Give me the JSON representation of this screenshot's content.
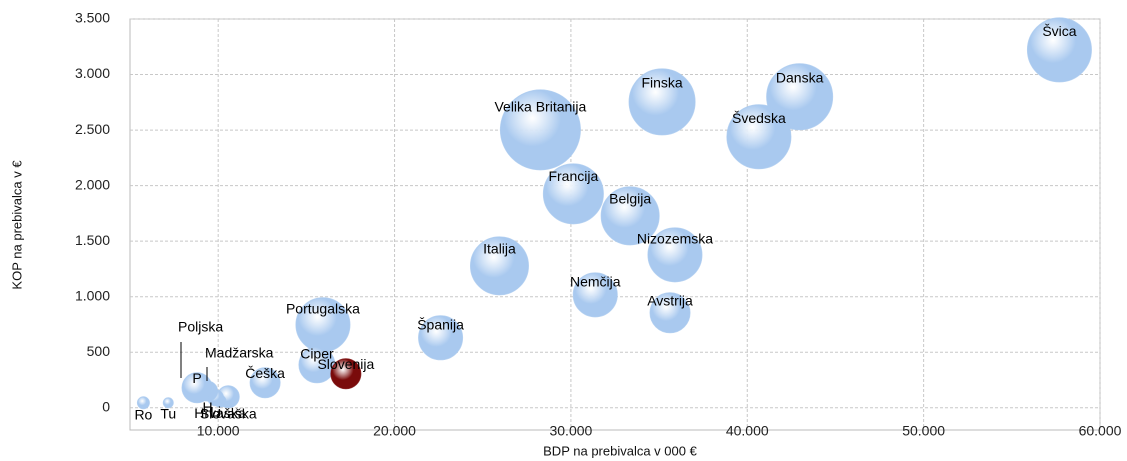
{
  "chart_data": {
    "type": "bubble",
    "x_label": "BDP na prebivalca v 000 €",
    "y_label": "KOP na prebivalca v €",
    "names": [
      "Švica",
      "Danska",
      "Finska",
      "Švedska",
      "Velika Britanija",
      "Francija",
      "Belgija",
      "Nizozemska",
      "Italija",
      "Nemčija",
      "Avstrija",
      "Španija",
      "Portugalska",
      "Ciper",
      "Češka",
      "Slovaška",
      "Hrvaška",
      "Li",
      "H",
      "P",
      "Tu",
      "Ro",
      "Slovenija"
    ],
    "x": [
      57700,
      42970,
      35170,
      40660,
      28270,
      30140,
      33360,
      35900,
      25950,
      31380,
      35620,
      22610,
      15940,
      15600,
      12660,
      10570,
      10100,
      9850,
      9400,
      8800,
      7170,
      5760,
      17240
    ],
    "y": [
      3222,
      2800,
      2754,
      2440,
      2502,
      1926,
      1728,
      1377,
      1278,
      1017,
      855,
      630,
      747,
      387,
      225,
      99,
      60,
      90,
      150,
      180,
      45,
      45,
      306
    ],
    "sizes": [
      32,
      33,
      33,
      32,
      40,
      30,
      29,
      27,
      29,
      22,
      20,
      22,
      27,
      18,
      15,
      11,
      6,
      8,
      10,
      15,
      5,
      6,
      15
    ],
    "colors": [
      "#a9c9ef",
      "#a9c9ef",
      "#a9c9ef",
      "#a9c9ef",
      "#a9c9ef",
      "#a9c9ef",
      "#a9c9ef",
      "#a9c9ef",
      "#a9c9ef",
      "#a9c9ef",
      "#a9c9ef",
      "#a9c9ef",
      "#a9c9ef",
      "#a9c9ef",
      "#a9c9ef",
      "#a9c9ef",
      "#a9c9ef",
      "#a9c9ef",
      "#a9c9ef",
      "#a9c9ef",
      "#a9c9ef",
      "#a9c9ef",
      "#7a0b0b"
    ],
    "annotations": [
      "Poljska",
      "Madžarska"
    ],
    "xlim": [
      5000,
      60000
    ],
    "xticks": [
      {
        "value": 10000,
        "label": "10.000"
      },
      {
        "value": 20000,
        "label": "20.000"
      },
      {
        "value": 30000,
        "label": "30.000"
      },
      {
        "value": 40000,
        "label": "40.000"
      },
      {
        "value": 50000,
        "label": "50.000"
      },
      {
        "value": 60000,
        "label": "60.000"
      }
    ],
    "ylim": [
      -200,
      3500
    ],
    "yticks": [
      0,
      500,
      {
        "value": 1000,
        "label": "1.000"
      },
      {
        "value": 1500,
        "label": "1.500"
      },
      {
        "value": 2000,
        "label": "2.000"
      },
      {
        "value": 2500,
        "label": "2.500"
      },
      {
        "value": 3000,
        "label": "3.000"
      },
      {
        "value": 3500,
        "label": "3.500"
      }
    ],
    "grid": true
  }
}
